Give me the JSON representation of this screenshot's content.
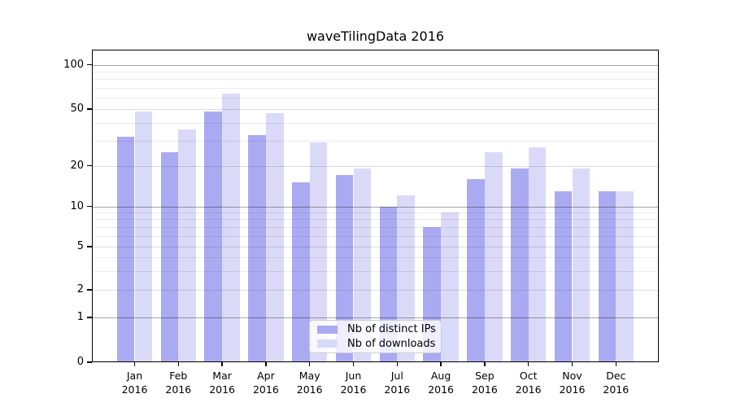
{
  "chart_data": {
    "type": "bar",
    "title": "waveTilingData 2016",
    "categories": [
      "Jan",
      "Feb",
      "Mar",
      "Apr",
      "May",
      "Jun",
      "Jul",
      "Aug",
      "Sep",
      "Oct",
      "Nov",
      "Dec"
    ],
    "category_year": "2016",
    "series": [
      {
        "name": "Nb of distinct IPs",
        "color": "#aaaaf2",
        "values": [
          32,
          25,
          48,
          33,
          15,
          17,
          10,
          7,
          16,
          19,
          13,
          13
        ]
      },
      {
        "name": "Nb of downloads",
        "color": "#dadaf8",
        "values": [
          48,
          36,
          64,
          47,
          29,
          19,
          12,
          9,
          25,
          27,
          19,
          13
        ]
      }
    ],
    "y_axis": {
      "scale": "log-like-with-zero",
      "tick_labels": [
        "0",
        "1",
        "2",
        "5",
        "10",
        "20",
        "50",
        "100"
      ],
      "tick_values": [
        0,
        1,
        2,
        5,
        10,
        20,
        50,
        100
      ],
      "power_tick_values": [
        1,
        10,
        100
      ],
      "minor_gridline_values": [
        3,
        4,
        6,
        7,
        8,
        9,
        30,
        40,
        60,
        70,
        80,
        90
      ],
      "ylim": [
        0,
        127
      ]
    },
    "legend": {
      "position": "lower-center"
    },
    "grid": true
  },
  "colors": {
    "bar_distinct_ips": "#aaaaf2",
    "bar_downloads": "#dadaf8",
    "axis": "#000000",
    "major_grid": "#a6a6a6",
    "minor_grid": "#ebebeb",
    "legend_border": "#cccccc"
  }
}
